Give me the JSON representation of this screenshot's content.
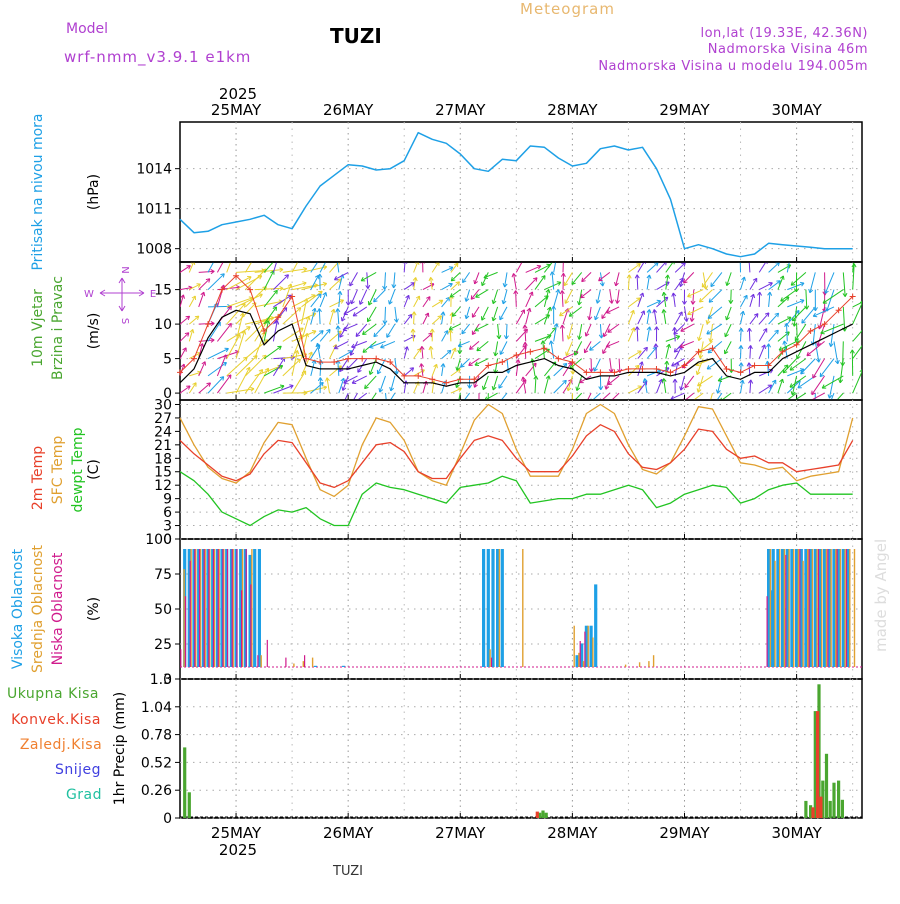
{
  "header": {
    "model_label": "Model",
    "model_name": "wrf-nmm_v3.9.1 e1km",
    "station": "TUZI",
    "title": "Meteogram",
    "coords": "lon,lat (19.33E, 42.36N)",
    "elevation": "Nadmorska Visina 46m",
    "model_elevation": "Nadmorska Visina u modelu 194.005m",
    "credit": "made by Angel",
    "footer_station": "TUZI"
  },
  "colors": {
    "pressure": "#1ea0e6",
    "t2m": "#e8402a",
    "tsfc": "#e0a030",
    "dewpoint": "#22c422",
    "cloud_high": "#1ea0e6",
    "cloud_mid": "#e0a030",
    "cloud_low": "#d01a8c",
    "precip_total": "#4aa630",
    "precip_conv": "#e8402a",
    "precip_frz": "#f08030",
    "snow": "#4040e0",
    "hail": "#20c0a0",
    "wind_label": "#b040d0"
  },
  "chart_data": [
    {
      "type": "line",
      "panel": "pressure",
      "ylabel": "(hPa)",
      "side_labels": [
        "Pritisak na nivou mora"
      ],
      "yticks": [
        1008,
        1011,
        1014
      ],
      "ylim": [
        1007,
        1017.5
      ],
      "x_hours": [
        0,
        3,
        6,
        9,
        12,
        15,
        18,
        21,
        24,
        27,
        30,
        33,
        36,
        39,
        42,
        45,
        48,
        51,
        54,
        57,
        60,
        63,
        66,
        69,
        72,
        75,
        78,
        81,
        84,
        87,
        90,
        93,
        96,
        99,
        102,
        105,
        108,
        111,
        114,
        117,
        120,
        123,
        126,
        129,
        132,
        135,
        138,
        141,
        144
      ],
      "values": [
        1010.2,
        1009.2,
        1009.3,
        1009.8,
        1010.0,
        1010.2,
        1010.5,
        1009.8,
        1009.5,
        1011.2,
        1012.7,
        1013.5,
        1014.3,
        1014.2,
        1013.9,
        1014.0,
        1014.6,
        1016.7,
        1016.2,
        1015.9,
        1015.1,
        1014.0,
        1013.8,
        1014.7,
        1014.6,
        1015.7,
        1015.6,
        1014.8,
        1014.2,
        1014.4,
        1015.5,
        1015.7,
        1015.4,
        1015.6,
        1014.0,
        1011.7,
        1008.0,
        1008.3,
        1008.0,
        1007.6,
        1007.4,
        1007.6,
        1008.4,
        1008.3,
        1008.2,
        1008.1,
        1008.0,
        1008.0,
        1008.0
      ]
    },
    {
      "type": "line",
      "panel": "wind",
      "ylabel": "(m/s)",
      "side_labels": [
        "10m Vjetar",
        "Brzina i Pravac"
      ],
      "compass": [
        "N",
        "W",
        "E",
        "S"
      ],
      "yticks": [
        0,
        5,
        10,
        15
      ],
      "ylim": [
        -1,
        19
      ],
      "x_hours": [
        0,
        3,
        6,
        9,
        12,
        15,
        18,
        21,
        24,
        27,
        30,
        33,
        36,
        39,
        42,
        45,
        48,
        51,
        54,
        57,
        60,
        63,
        66,
        69,
        72,
        75,
        78,
        81,
        84,
        87,
        90,
        93,
        96,
        99,
        102,
        105,
        108,
        111,
        114,
        117,
        120,
        123,
        126,
        129,
        132,
        135,
        138,
        141,
        144
      ],
      "speed": [
        1.5,
        3.5,
        8,
        11,
        12,
        11.5,
        7,
        9,
        10,
        4,
        3.5,
        3.5,
        3.5,
        4,
        4.5,
        3.5,
        1.5,
        1.5,
        1.5,
        1,
        1.5,
        1.5,
        3,
        3,
        4,
        4.5,
        5,
        4,
        3.5,
        2,
        2.5,
        2.5,
        3,
        3,
        3,
        2.5,
        3,
        4.5,
        5,
        2.5,
        2,
        3,
        3,
        5,
        6,
        7,
        8,
        9,
        10
      ],
      "gust": [
        3,
        5,
        10,
        15,
        17,
        15,
        9,
        11,
        14,
        5,
        4.5,
        4.5,
        5,
        5,
        5,
        4.5,
        2.5,
        2.5,
        2,
        1.5,
        2,
        2,
        4,
        4.5,
        5.5,
        6,
        6.5,
        5,
        4.5,
        3,
        3,
        3,
        3.5,
        3.5,
        3.5,
        3,
        4,
        6,
        6.5,
        3.5,
        3,
        4,
        4,
        6,
        7,
        9,
        10,
        12,
        14
      ]
    },
    {
      "type": "line",
      "panel": "temperature",
      "ylabel": "(C)",
      "side_labels": [
        "2m Temp",
        "SFC Temp",
        "dewpt Temp"
      ],
      "yticks": [
        0,
        3,
        6,
        9,
        12,
        15,
        18,
        21,
        24,
        27,
        30
      ],
      "ylim": [
        0,
        31
      ],
      "x_hours": [
        0,
        3,
        6,
        9,
        12,
        15,
        18,
        21,
        24,
        27,
        30,
        33,
        36,
        39,
        42,
        45,
        48,
        51,
        54,
        57,
        60,
        63,
        66,
        69,
        72,
        75,
        78,
        81,
        84,
        87,
        90,
        93,
        96,
        99,
        102,
        105,
        108,
        111,
        114,
        117,
        120,
        123,
        126,
        129,
        132,
        135,
        138,
        141,
        144
      ],
      "series": [
        {
          "name": "2m Temp",
          "values": [
            22,
            19,
            16.5,
            14,
            13,
            14.5,
            19,
            22,
            21.5,
            17,
            12.5,
            11.5,
            13,
            17,
            21,
            21.5,
            19.5,
            15,
            13.5,
            13.5,
            18,
            22,
            23,
            22,
            18,
            15,
            15,
            15,
            18.5,
            23,
            25.5,
            24,
            19,
            16,
            15.5,
            17,
            20,
            24.5,
            24,
            20,
            18,
            18.5,
            17,
            17,
            15,
            15.5,
            16,
            16.5,
            22
          ]
        },
        {
          "name": "SFC Temp",
          "values": [
            27,
            21,
            16,
            13.5,
            12.5,
            15,
            21.5,
            26,
            25.5,
            18,
            11,
            9.5,
            12,
            21,
            27,
            26,
            22,
            15,
            13,
            12,
            19,
            26.5,
            30,
            28,
            20,
            14,
            14,
            14,
            20,
            28,
            30,
            28,
            21,
            15.5,
            14.5,
            17,
            23,
            29.5,
            29,
            23,
            17,
            16.5,
            15.5,
            16,
            13,
            14,
            14.5,
            15,
            27
          ]
        },
        {
          "name": "dewpt Temp",
          "values": [
            15,
            13,
            10,
            6,
            4.5,
            3,
            5,
            6.5,
            6,
            7,
            4.5,
            3,
            3,
            10,
            12.5,
            11.5,
            11,
            10,
            9,
            8,
            11.5,
            12,
            12.5,
            14,
            13,
            8,
            8.5,
            9,
            9,
            10,
            10,
            11,
            12,
            11,
            7,
            8,
            10,
            11,
            12,
            11.5,
            8,
            9,
            11,
            12,
            12.5,
            10,
            10,
            10,
            10
          ]
        }
      ]
    },
    {
      "type": "bar",
      "panel": "clouds",
      "ylabel": "(%)",
      "side_labels": [
        "Visoka Oblacnost",
        "Srednja Oblacnost",
        "Niska Oblacnost"
      ],
      "yticks": [
        0,
        25,
        50,
        75,
        100
      ],
      "ylim": [
        0,
        100
      ],
      "series": [
        {
          "name": "Visoka Oblacnost",
          "points": [
            [
              1,
              100
            ],
            [
              2,
              100
            ],
            [
              3,
              100
            ],
            [
              4,
              100
            ],
            [
              5,
              100
            ],
            [
              6,
              100
            ],
            [
              7,
              100
            ],
            [
              8,
              100
            ],
            [
              9,
              100
            ],
            [
              10,
              100
            ],
            [
              11,
              100
            ],
            [
              12,
              100
            ],
            [
              13,
              100
            ],
            [
              14,
              100
            ],
            [
              15,
              95
            ],
            [
              16,
              100
            ],
            [
              17,
              100
            ],
            [
              29,
              1
            ],
            [
              35,
              1
            ],
            [
              65,
              100
            ],
            [
              66,
              100
            ],
            [
              67,
              100
            ],
            [
              68,
              100
            ],
            [
              69,
              100
            ],
            [
              85,
              10
            ],
            [
              86,
              20
            ],
            [
              87,
              35
            ],
            [
              88,
              35
            ],
            [
              89,
              70
            ],
            [
              126,
              100
            ],
            [
              126.5,
              65
            ],
            [
              127,
              100
            ],
            [
              128,
              100
            ],
            [
              129,
              100
            ],
            [
              130,
              100
            ],
            [
              131,
              100
            ],
            [
              132,
              100
            ],
            [
              133,
              100
            ],
            [
              134,
              100
            ],
            [
              135,
              100
            ],
            [
              136,
              100
            ],
            [
              137,
              100
            ],
            [
              138,
              100
            ],
            [
              139,
              100
            ],
            [
              140,
              100
            ],
            [
              141,
              100
            ],
            [
              142,
              100
            ],
            [
              143,
              100
            ]
          ]
        },
        {
          "name": "Srednja Oblacnost",
          "points": [
            [
              0.5,
              83
            ],
            [
              2,
              100
            ],
            [
              3,
              100
            ],
            [
              4,
              100
            ],
            [
              5,
              100
            ],
            [
              6,
              100
            ],
            [
              7,
              100
            ],
            [
              8,
              100
            ],
            [
              9,
              100
            ],
            [
              11,
              100
            ],
            [
              13,
              100
            ],
            [
              15,
              100
            ],
            [
              17,
              10
            ],
            [
              24,
              3
            ],
            [
              26,
              5
            ],
            [
              28,
              8
            ],
            [
              66,
              15
            ],
            [
              68,
              100
            ],
            [
              73,
              100
            ],
            [
              84,
              35
            ],
            [
              85,
              12
            ],
            [
              86,
              5
            ],
            [
              87,
              35
            ],
            [
              88,
              25
            ],
            [
              95,
              2
            ],
            [
              98,
              4
            ],
            [
              100,
              5
            ],
            [
              101,
              10
            ],
            [
              126,
              100
            ],
            [
              127,
              90
            ],
            [
              128,
              100
            ],
            [
              129,
              100
            ],
            [
              130,
              100
            ],
            [
              131,
              100
            ],
            [
              132,
              100
            ],
            [
              133,
              90
            ],
            [
              134,
              100
            ],
            [
              135,
              100
            ],
            [
              136,
              100
            ],
            [
              137,
              100
            ],
            [
              138,
              100
            ],
            [
              139,
              100
            ],
            [
              140,
              100
            ],
            [
              141,
              100
            ],
            [
              142,
              100
            ],
            [
              143,
              100
            ],
            [
              144,
              100
            ]
          ]
        },
        {
          "name": "Niska Oblacnost",
          "points": [
            [
              0.5,
              15
            ],
            [
              1.5,
              60
            ],
            [
              2.5,
              90
            ],
            [
              3.5,
              100
            ],
            [
              4.5,
              100
            ],
            [
              5.5,
              100
            ],
            [
              6.5,
              100
            ],
            [
              7.5,
              100
            ],
            [
              8.5,
              100
            ],
            [
              9.5,
              100
            ],
            [
              10.5,
              100
            ],
            [
              11.5,
              100
            ],
            [
              12.5,
              100
            ],
            [
              13.5,
              65
            ],
            [
              14.5,
              100
            ],
            [
              15.5,
              70
            ],
            [
              17,
              10
            ],
            [
              19,
              23
            ],
            [
              23,
              8
            ],
            [
              27,
              10
            ],
            [
              67,
              8
            ],
            [
              86,
              22
            ],
            [
              87,
              30
            ],
            [
              126,
              60
            ],
            [
              130,
              95
            ],
            [
              133,
              100
            ],
            [
              135,
              100
            ],
            [
              137,
              100
            ],
            [
              139,
              100
            ],
            [
              141,
              100
            ],
            [
              143,
              100
            ]
          ]
        }
      ]
    },
    {
      "type": "bar",
      "panel": "precip",
      "ylabel": "1hr Precip (mm)",
      "side_labels": [
        "Ukupna Kisa",
        "Konvek.Kisa",
        "Zaledj.Kisa",
        "Snijeg",
        "Grad"
      ],
      "yticks": [
        0,
        0.26,
        0.52,
        0.78,
        1.04,
        1.3
      ],
      "ylim": [
        0,
        1.3
      ],
      "series": [
        {
          "name": "Ukupna Kisa",
          "points": [
            [
              1,
              0.66
            ],
            [
              2,
              0.24
            ],
            [
              77,
              0.05
            ],
            [
              77.7,
              0.07
            ],
            [
              78.4,
              0.05
            ],
            [
              134,
              0.16
            ],
            [
              135,
              0.12
            ],
            [
              136,
              1.0
            ],
            [
              136.8,
              1.25
            ],
            [
              137.6,
              0.35
            ],
            [
              138.4,
              0.6
            ],
            [
              139.2,
              0.16
            ],
            [
              140,
              0.33
            ],
            [
              141,
              0.35
            ],
            [
              141.8,
              0.17
            ]
          ]
        },
        {
          "name": "Konvek.Kisa",
          "points": [
            [
              76.5,
              0.06
            ],
            [
              135.5,
              0.1
            ],
            [
              136.5,
              1.0
            ],
            [
              137.2,
              0.2
            ]
          ]
        }
      ]
    }
  ],
  "time_axis": {
    "year": "2025",
    "day_labels": [
      "25MAY",
      "26MAY",
      "27MAY",
      "28MAY",
      "29MAY",
      "30MAY"
    ],
    "day_hours": [
      12,
      36,
      60,
      84,
      108,
      132
    ],
    "xlim": [
      0,
      146
    ]
  }
}
